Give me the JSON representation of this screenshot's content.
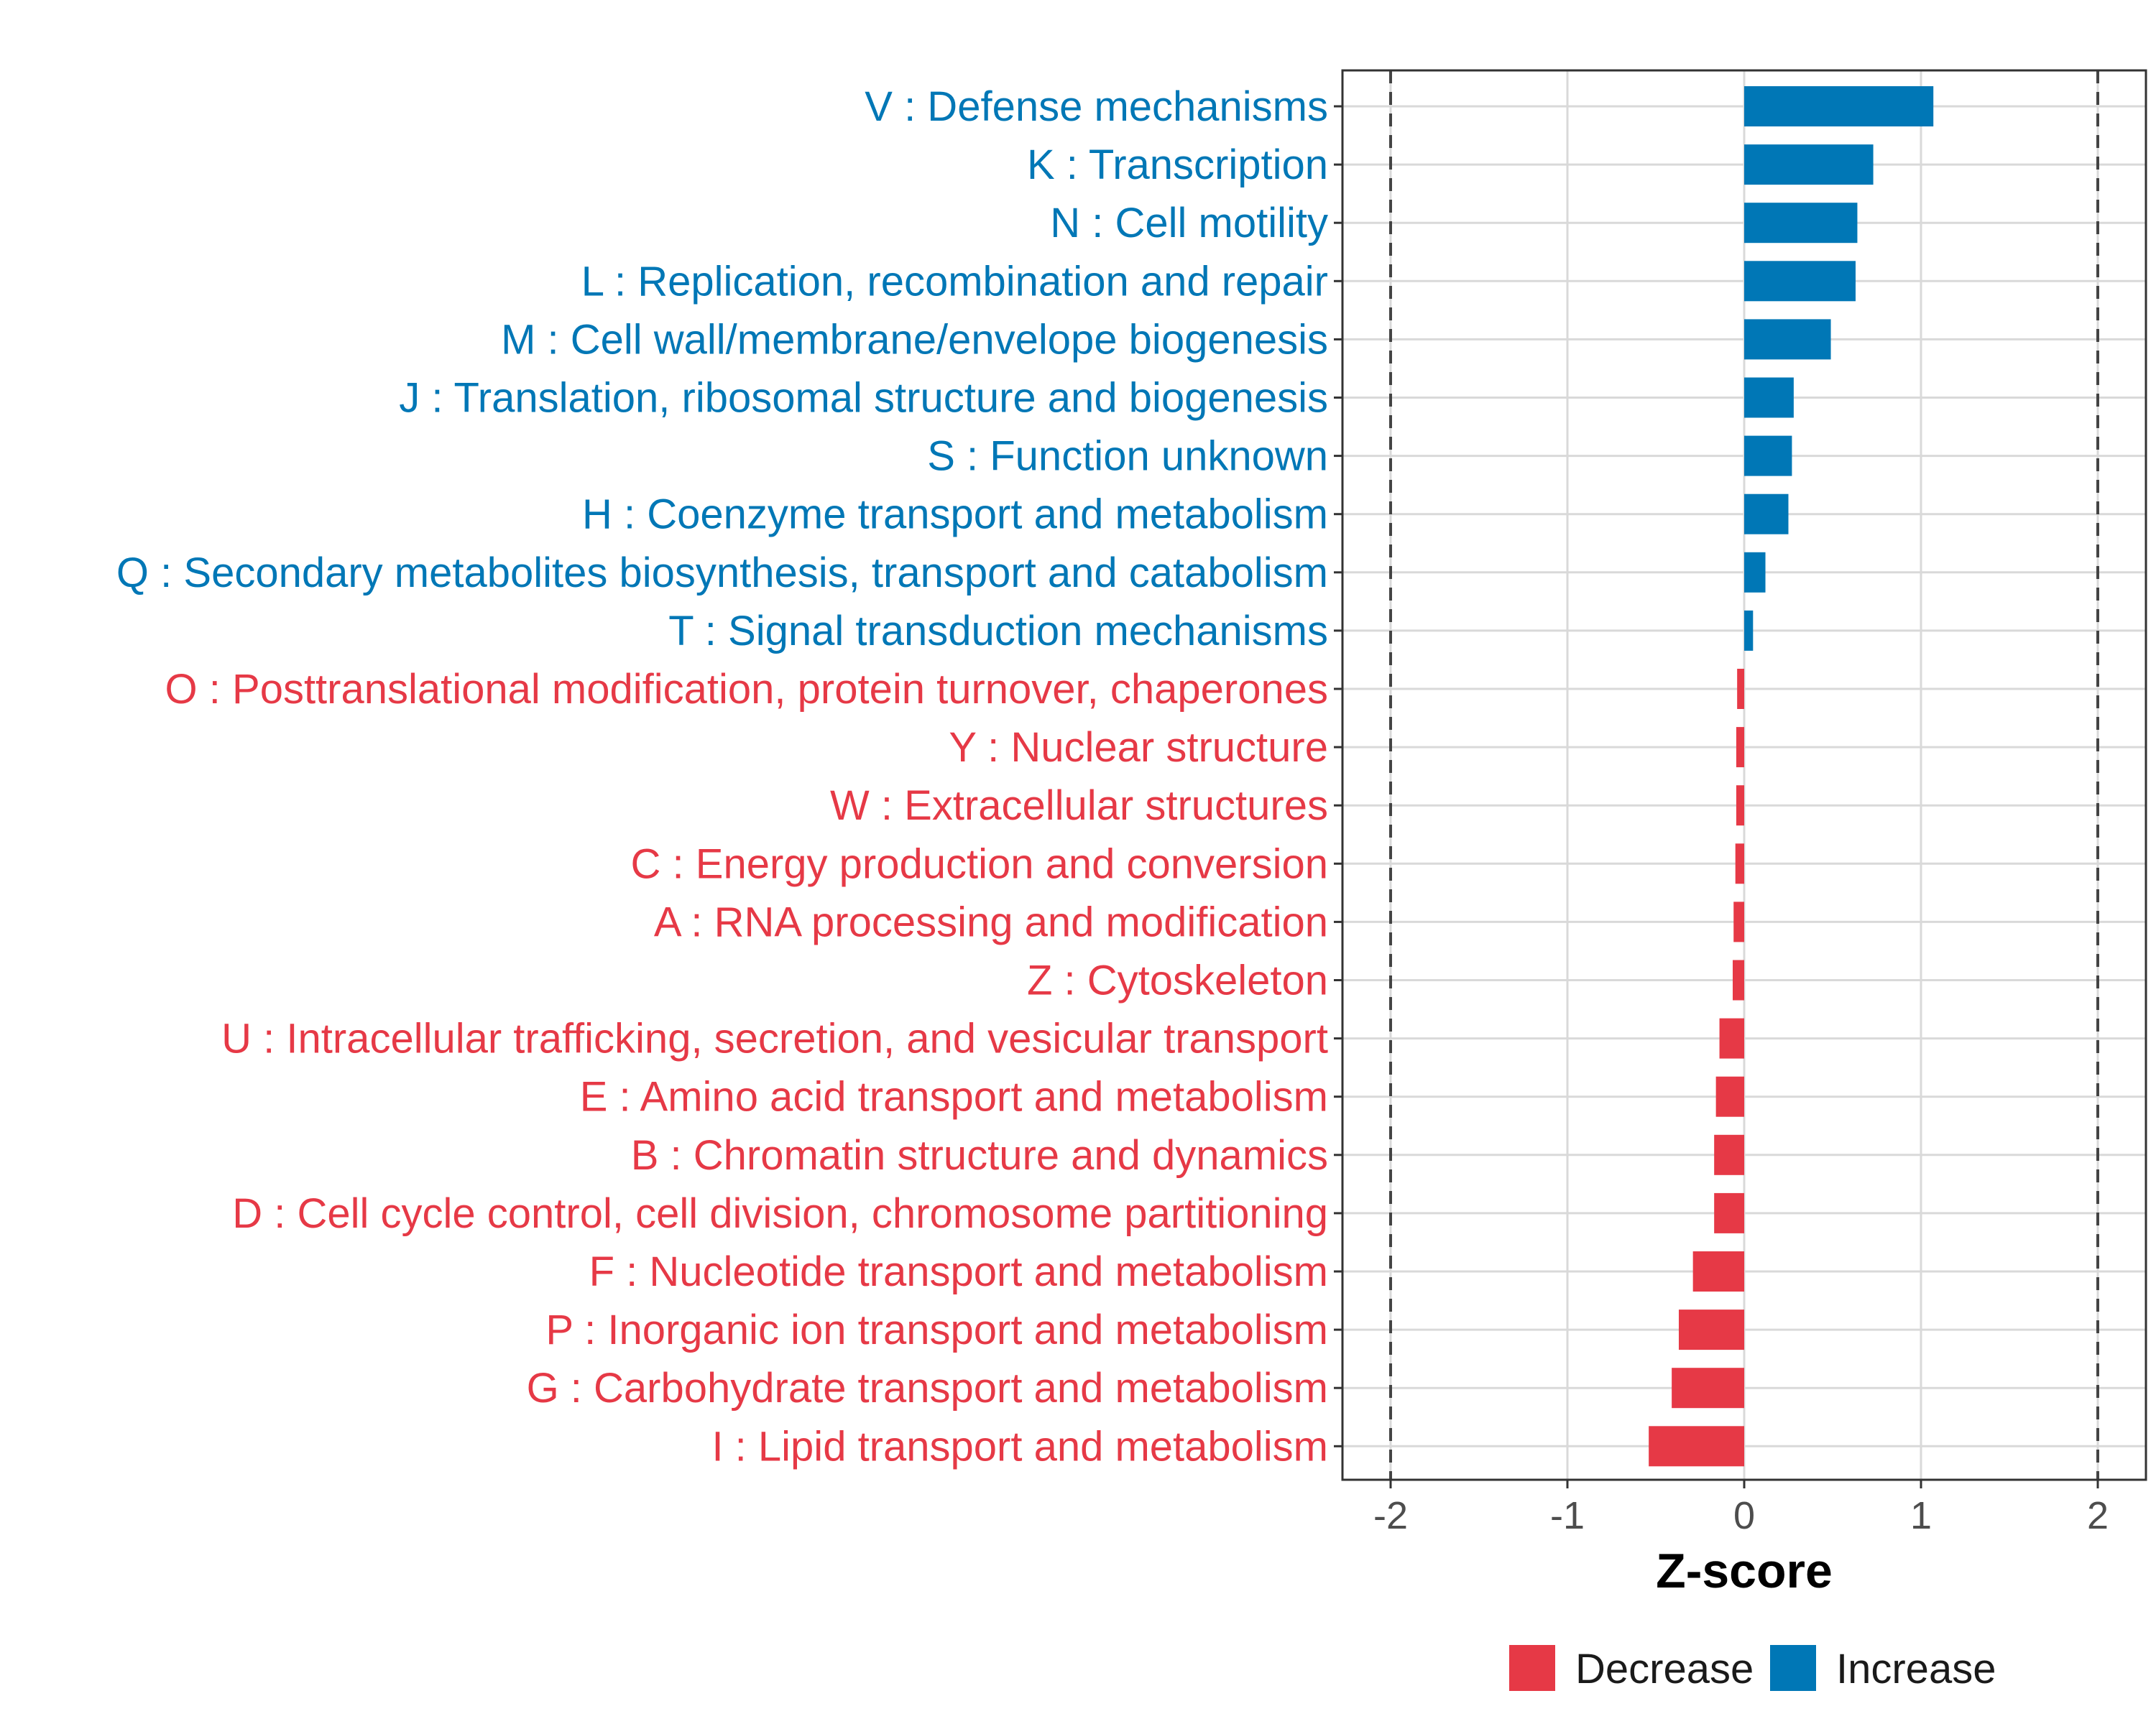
{
  "chart_data": {
    "type": "bar",
    "orientation": "horizontal",
    "title": "",
    "xlabel": "Z-score",
    "ylabel": "",
    "xlim": [
      -2.25,
      2.25
    ],
    "xticks": [
      -2,
      -1,
      0,
      1,
      2
    ],
    "xtick_labels": [
      "-2",
      "-1",
      "0",
      "1",
      "2"
    ],
    "reference_lines": [
      -2,
      2
    ],
    "grid": true,
    "legend_position": "bottom",
    "colors": {
      "Decrease": "#e63946",
      "Increase": "#0077b6"
    },
    "legend": [
      "Decrease",
      "Increase"
    ],
    "categories": [
      "V : Defense mechanisms",
      "K : Transcription",
      "N : Cell motility",
      "L : Replication, recombination and repair",
      "M : Cell wall/membrane/envelope biogenesis",
      "J : Translation, ribosomal structure and biogenesis",
      "S : Function unknown",
      "H : Coenzyme transport and metabolism",
      "Q : Secondary metabolites biosynthesis, transport and catabolism",
      "T : Signal transduction mechanisms",
      "O : Posttranslational modification, protein turnover, chaperones",
      "Y : Nuclear structure",
      "W : Extracellular structures",
      "C : Energy production and conversion",
      "A : RNA processing and modification",
      "Z : Cytoskeleton",
      "U : Intracellular trafficking, secretion, and vesicular transport",
      "E : Amino acid transport and metabolism",
      "B : Chromatin structure and dynamics",
      "D : Cell cycle control, cell division, chromosome partitioning",
      "F : Nucleotide transport and metabolism",
      "P : Inorganic ion transport and metabolism",
      "G : Carbohydrate transport and metabolism",
      "I : Lipid transport and metabolism"
    ],
    "values": [
      1.07,
      0.73,
      0.64,
      0.63,
      0.49,
      0.28,
      0.27,
      0.25,
      0.12,
      0.05,
      -0.04,
      -0.045,
      -0.045,
      -0.05,
      -0.06,
      -0.065,
      -0.14,
      -0.16,
      -0.17,
      -0.17,
      -0.29,
      -0.37,
      -0.41,
      -0.54
    ],
    "groups": [
      "Increase",
      "Increase",
      "Increase",
      "Increase",
      "Increase",
      "Increase",
      "Increase",
      "Increase",
      "Increase",
      "Increase",
      "Decrease",
      "Decrease",
      "Decrease",
      "Decrease",
      "Decrease",
      "Decrease",
      "Decrease",
      "Decrease",
      "Decrease",
      "Decrease",
      "Decrease",
      "Decrease",
      "Decrease",
      "Decrease"
    ]
  }
}
